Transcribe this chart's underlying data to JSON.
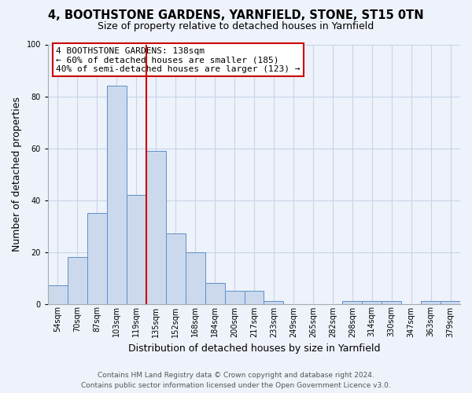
{
  "title1": "4, BOOTHSTONE GARDENS, YARNFIELD, STONE, ST15 0TN",
  "title2": "Size of property relative to detached houses in Yarnfield",
  "xlabel": "Distribution of detached houses by size in Yarnfield",
  "ylabel": "Number of detached properties",
  "bin_labels": [
    "54sqm",
    "70sqm",
    "87sqm",
    "103sqm",
    "119sqm",
    "135sqm",
    "152sqm",
    "168sqm",
    "184sqm",
    "200sqm",
    "217sqm",
    "233sqm",
    "249sqm",
    "265sqm",
    "282sqm",
    "298sqm",
    "314sqm",
    "330sqm",
    "347sqm",
    "363sqm",
    "379sqm"
  ],
  "bar_heights": [
    7,
    18,
    35,
    84,
    42,
    59,
    27,
    20,
    8,
    5,
    5,
    1,
    0,
    0,
    0,
    1,
    1,
    1,
    0,
    1,
    1
  ],
  "bar_color": "#ccd9ed",
  "bar_edge_color": "#5b8fc9",
  "vline_color": "#cc0000",
  "vline_x_index": 4.5,
  "ylim": [
    0,
    100
  ],
  "yticks": [
    0,
    20,
    40,
    60,
    80,
    100
  ],
  "annotation_line1": "4 BOOTHSTONE GARDENS: 138sqm",
  "annotation_line2": "← 60% of detached houses are smaller (185)",
  "annotation_line3": "40% of semi-detached houses are larger (123) →",
  "annotation_box_edge": "#cc0000",
  "footer1": "Contains HM Land Registry data © Crown copyright and database right 2024.",
  "footer2": "Contains public sector information licensed under the Open Government Licence v3.0.",
  "background_color": "#eef2fa",
  "plot_bg_color": "#eef2fa",
  "grid_color": "#c8d4e8",
  "title1_fontsize": 10.5,
  "title2_fontsize": 9,
  "ylabel_fontsize": 9,
  "xlabel_fontsize": 9,
  "tick_fontsize": 7,
  "annotation_fontsize": 8,
  "footer_fontsize": 6.5
}
